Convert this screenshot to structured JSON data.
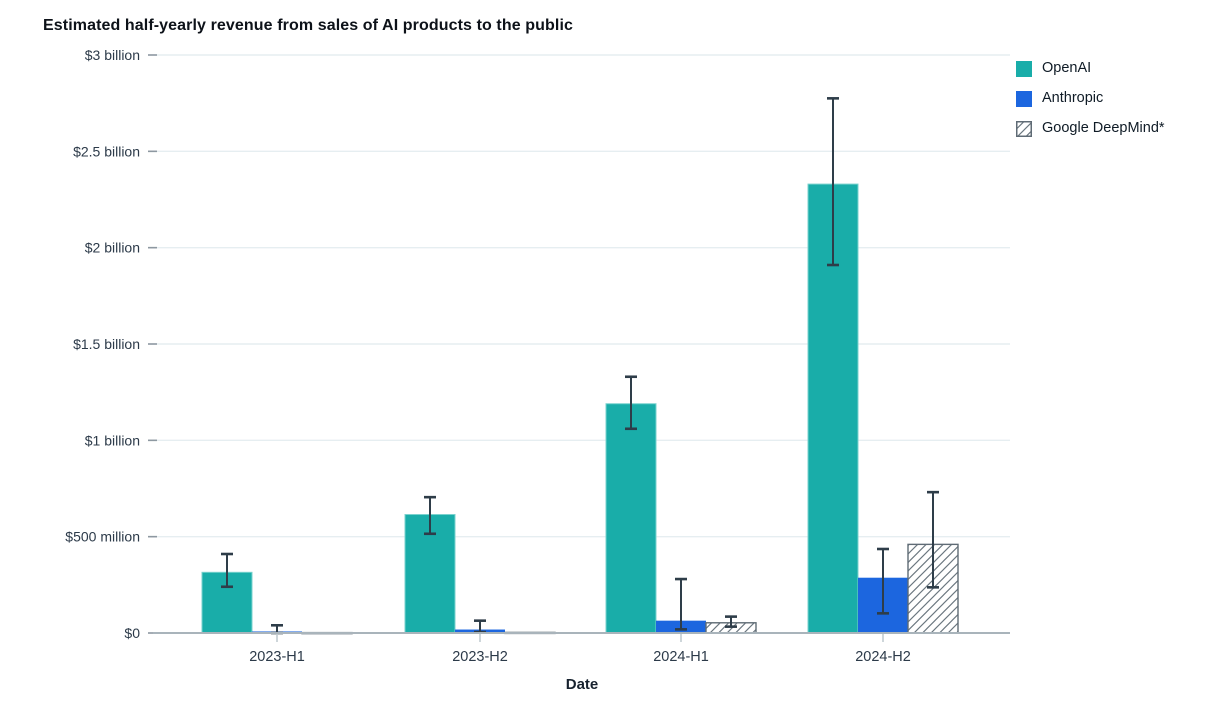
{
  "chart_data": {
    "type": "bar",
    "title": "Estimated half-yearly revenue from sales of AI products to the public",
    "xlabel": "Date",
    "ylabel": "",
    "unit": "USD millions",
    "categories": [
      "2023-H1",
      "2023-H2",
      "2024-H1",
      "2024-H2"
    ],
    "ylim": [
      0,
      3000
    ],
    "grid": true,
    "legend_position": "top-right",
    "y_ticks": [
      {
        "value": 0,
        "label": "$0"
      },
      {
        "value": 500,
        "label": "$500 million"
      },
      {
        "value": 1000,
        "label": "$1 billion"
      },
      {
        "value": 1500,
        "label": "$1.5 billion"
      },
      {
        "value": 2000,
        "label": "$2 billion"
      },
      {
        "value": 2500,
        "label": "$2.5 billion"
      },
      {
        "value": 3000,
        "label": "$3 billion"
      }
    ],
    "series": [
      {
        "name": "OpenAI",
        "style": "solid",
        "color": "#19ADA9",
        "edge_color": "#79D2CE",
        "values": [
          315,
          615,
          1190,
          2330
        ],
        "error_low": [
          240,
          515,
          1060,
          1910
        ],
        "error_high": [
          410,
          705,
          1330,
          2775
        ]
      },
      {
        "name": "Anthropic",
        "style": "solid",
        "color": "#1C66DF",
        "edge_color": null,
        "values": [
          8,
          18,
          64,
          287
        ],
        "error_low": [
          0,
          5,
          19,
          102
        ],
        "error_high": [
          40,
          64,
          280,
          436
        ]
      },
      {
        "name": "Google DeepMind*",
        "style": "hatched",
        "color": "#FFFFFF",
        "edge_color": "#5F6B75",
        "hatch_color": "#6B7780",
        "values": [
          2,
          3,
          53,
          460
        ],
        "error_low": [
          null,
          null,
          33,
          237
        ],
        "error_high": [
          null,
          null,
          85,
          731
        ]
      }
    ],
    "colors": {
      "grid": "#E6EEF1",
      "axis": "#A9B4BB",
      "x_tick": "#C2CBD1",
      "y_tick": "#8D98A1",
      "error_bar": "#2E3D49",
      "title_text": "#0D1219",
      "label_text": "#2C3A49"
    }
  }
}
